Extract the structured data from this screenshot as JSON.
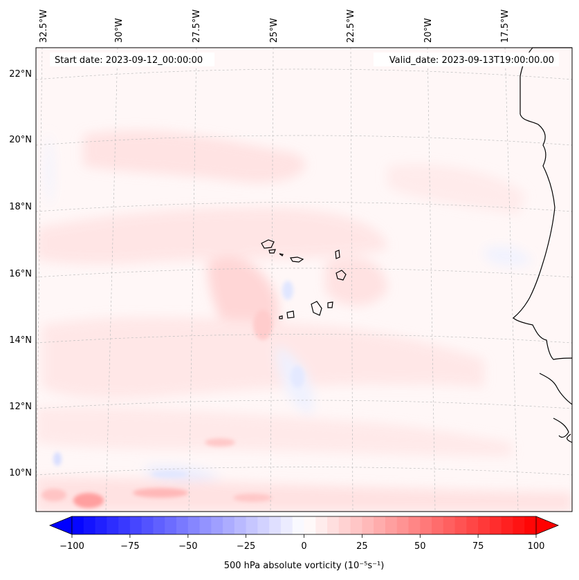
{
  "map": {
    "start_date": "Start date: 2023-09-12_00:00:00",
    "valid_date": "Valid_date: 2023-09-13T19:00:00.00",
    "lon_labels": [
      "32.5°W",
      "30°W",
      "27.5°W",
      "25°W",
      "22.5°W",
      "20°W",
      "17.5°W"
    ],
    "lat_labels": [
      "22°N",
      "20°N",
      "18°N",
      "16°N",
      "14°N",
      "12°N",
      "10°N"
    ],
    "features": {
      "islands": "Cape Verde islands",
      "coastline": "West African coastline"
    }
  },
  "colorbar": {
    "label": "500 hPa absolute vorticity (10⁻⁵s⁻¹)",
    "ticks": [
      "−100",
      "−75",
      "−50",
      "−25",
      "0",
      "25",
      "50",
      "75",
      "100"
    ],
    "min": -100,
    "max": 100,
    "levels": 40,
    "colors": {
      "negative": "#0000ff",
      "zero": "#ffffff",
      "positive": "#ff0000"
    }
  }
}
